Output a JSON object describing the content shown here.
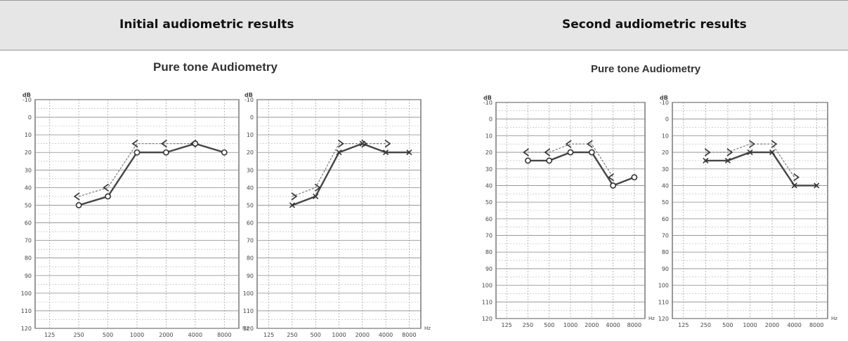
{
  "header": {
    "columns": [
      "Initial audiometric results",
      "Second audiometric results"
    ]
  },
  "sections": [
    {
      "title": "Pure tone Audiometry"
    },
    {
      "title": "Pure tone Audiometry"
    }
  ],
  "chart_data": [
    {
      "type": "line",
      "y_unit": "dB",
      "x_unit": "Hz",
      "x": [
        "125",
        "250",
        "500",
        "1000",
        "2000",
        "4000",
        "8000"
      ],
      "y_ticks": [
        "-10",
        "0",
        "10",
        "20",
        "30",
        "40",
        "50",
        "60",
        "70",
        "80",
        "90",
        "100",
        "110",
        "120"
      ],
      "ylim": [
        -10,
        120
      ],
      "y_inverted": true,
      "grid": true,
      "series": [
        {
          "marker": "circle",
          "line": "solid",
          "values": [
            null,
            50,
            45,
            20,
            20,
            15,
            20
          ]
        },
        {
          "marker": "less-than",
          "line": "dashed",
          "values": [
            null,
            45,
            40,
            15,
            15,
            15,
            null
          ]
        }
      ]
    },
    {
      "type": "line",
      "y_unit": "dB",
      "x_unit": "Hz",
      "x": [
        "125",
        "250",
        "500",
        "1000",
        "2000",
        "4000",
        "8000"
      ],
      "y_ticks": [
        "-10",
        "0",
        "10",
        "20",
        "30",
        "40",
        "50",
        "60",
        "70",
        "80",
        "90",
        "100",
        "110",
        "120"
      ],
      "ylim": [
        -10,
        120
      ],
      "y_inverted": true,
      "grid": true,
      "series": [
        {
          "marker": "x",
          "line": "solid",
          "values": [
            null,
            50,
            45,
            20,
            15,
            20,
            20
          ]
        },
        {
          "marker": "greater-than",
          "line": "dashed",
          "values": [
            null,
            45,
            40,
            15,
            15,
            15,
            null
          ]
        }
      ]
    },
    {
      "type": "line",
      "y_unit": "dB",
      "x_unit": "Hz",
      "x": [
        "125",
        "250",
        "500",
        "1000",
        "2000",
        "4000",
        "8000"
      ],
      "y_ticks": [
        "-10",
        "0",
        "10",
        "20",
        "30",
        "40",
        "50",
        "60",
        "70",
        "80",
        "90",
        "100",
        "110",
        "120"
      ],
      "ylim": [
        -10,
        120
      ],
      "y_inverted": true,
      "grid": true,
      "series": [
        {
          "marker": "circle",
          "line": "solid",
          "values": [
            null,
            25,
            25,
            20,
            20,
            40,
            35
          ]
        },
        {
          "marker": "less-than",
          "line": "dashed",
          "values": [
            null,
            20,
            20,
            15,
            15,
            35,
            null
          ]
        }
      ]
    },
    {
      "type": "line",
      "y_unit": "dB",
      "x_unit": "Hz",
      "x": [
        "125",
        "250",
        "500",
        "1000",
        "2000",
        "4000",
        "8000"
      ],
      "y_ticks": [
        "-10",
        "0",
        "10",
        "20",
        "30",
        "40",
        "50",
        "60",
        "70",
        "80",
        "90",
        "100",
        "110",
        "120"
      ],
      "ylim": [
        -10,
        120
      ],
      "y_inverted": true,
      "grid": true,
      "series": [
        {
          "marker": "x",
          "line": "solid",
          "values": [
            null,
            25,
            25,
            20,
            20,
            40,
            40
          ]
        },
        {
          "marker": "greater-than",
          "line": "dashed",
          "values": [
            null,
            20,
            20,
            15,
            15,
            35,
            null
          ]
        }
      ]
    }
  ]
}
